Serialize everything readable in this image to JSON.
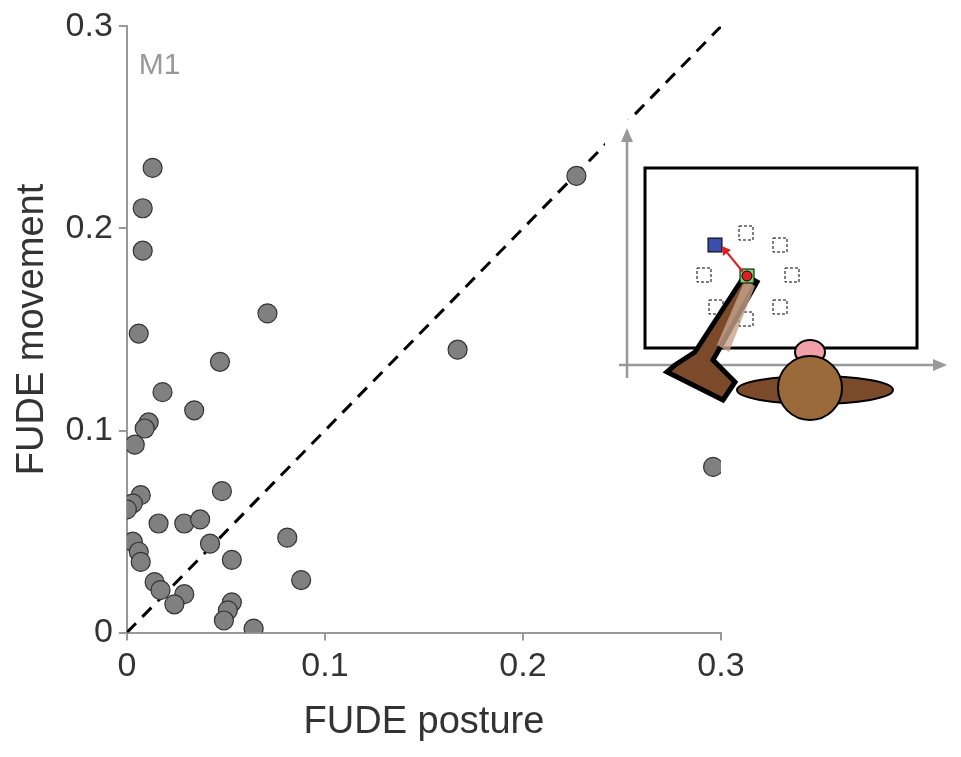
{
  "chart_data": {
    "type": "scatter",
    "annotation": "M1",
    "x_label": "FUDE posture",
    "y_label": "FUDE movement",
    "xlim": [
      0,
      0.3
    ],
    "ylim": [
      0,
      0.3
    ],
    "xticks": [
      0,
      0.1,
      0.2,
      0.3
    ],
    "yticks": [
      0,
      0.1,
      0.2,
      0.3
    ],
    "grid": false,
    "series": [
      {
        "type": "scatter",
        "color": "#808080",
        "marker": "circle",
        "x": [
          0.013,
          0.008,
          0.008,
          0.006,
          0.227,
          0.071,
          0.167,
          0.047,
          0.018,
          0.011,
          0.009,
          0.034,
          0.004,
          0.007,
          0.048,
          0.003,
          0.0,
          0.016,
          0.029,
          0.037,
          0.042,
          0.003,
          0.006,
          0.007,
          0.053,
          0.081,
          0.088,
          0.014,
          0.017,
          0.029,
          0.024,
          0.053,
          0.051,
          0.049,
          0.064,
          0.296
        ],
        "values": [
          0.23,
          0.21,
          0.189,
          0.148,
          0.226,
          0.158,
          0.14,
          0.134,
          0.119,
          0.104,
          0.101,
          0.11,
          0.093,
          0.068,
          0.07,
          0.064,
          0.061,
          0.054,
          0.054,
          0.056,
          0.044,
          0.045,
          0.04,
          0.035,
          0.036,
          0.047,
          0.026,
          0.025,
          0.021,
          0.019,
          0.014,
          0.015,
          0.011,
          0.006,
          0.002,
          0.082
        ]
      },
      {
        "type": "line",
        "color": "#000000",
        "line_style": "dashed",
        "x": [
          0,
          0.3
        ],
        "values": [
          0,
          0.3
        ]
      }
    ]
  }
}
